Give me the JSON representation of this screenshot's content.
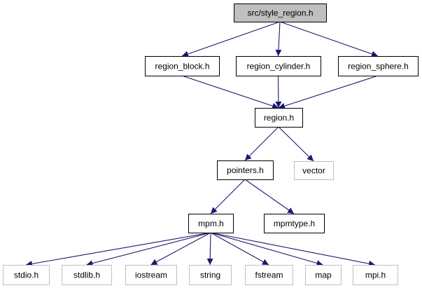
{
  "diagram": {
    "nodes": [
      {
        "id": "style_region",
        "label": "src/style_region.h",
        "style": "root"
      },
      {
        "id": "region_block",
        "label": "region_block.h",
        "style": "normal"
      },
      {
        "id": "region_cylinder",
        "label": "region_cylinder.h",
        "style": "normal"
      },
      {
        "id": "region_sphere",
        "label": "region_sphere.h",
        "style": "normal"
      },
      {
        "id": "region",
        "label": "region.h",
        "style": "normal"
      },
      {
        "id": "pointers",
        "label": "pointers.h",
        "style": "normal"
      },
      {
        "id": "vector",
        "label": "vector",
        "style": "external"
      },
      {
        "id": "mpm",
        "label": "mpm.h",
        "style": "normal"
      },
      {
        "id": "mpmtype",
        "label": "mpmtype.h",
        "style": "normal"
      },
      {
        "id": "stdio",
        "label": "stdio.h",
        "style": "external"
      },
      {
        "id": "stdlib",
        "label": "stdlib.h",
        "style": "external"
      },
      {
        "id": "iostream",
        "label": "iostream",
        "style": "external"
      },
      {
        "id": "string",
        "label": "string",
        "style": "external"
      },
      {
        "id": "fstream",
        "label": "fstream",
        "style": "external"
      },
      {
        "id": "map",
        "label": "map",
        "style": "external"
      },
      {
        "id": "mpi",
        "label": "mpi.h",
        "style": "external"
      }
    ],
    "edges": [
      {
        "from": "style_region",
        "to": "region_block"
      },
      {
        "from": "style_region",
        "to": "region_cylinder"
      },
      {
        "from": "style_region",
        "to": "region_sphere"
      },
      {
        "from": "region_block",
        "to": "region"
      },
      {
        "from": "region_cylinder",
        "to": "region"
      },
      {
        "from": "region_sphere",
        "to": "region"
      },
      {
        "from": "region",
        "to": "pointers"
      },
      {
        "from": "region",
        "to": "vector"
      },
      {
        "from": "pointers",
        "to": "mpm"
      },
      {
        "from": "pointers",
        "to": "mpmtype"
      },
      {
        "from": "mpm",
        "to": "stdio"
      },
      {
        "from": "mpm",
        "to": "stdlib"
      },
      {
        "from": "mpm",
        "to": "iostream"
      },
      {
        "from": "mpm",
        "to": "string"
      },
      {
        "from": "mpm",
        "to": "fstream"
      },
      {
        "from": "mpm",
        "to": "map"
      },
      {
        "from": "mpm",
        "to": "mpi"
      }
    ],
    "colors": {
      "edge": "#191970",
      "root_fill": "#bfbfbf",
      "node_border": "#000000",
      "external_border": "#bfbfbf",
      "text": "#000000"
    }
  }
}
